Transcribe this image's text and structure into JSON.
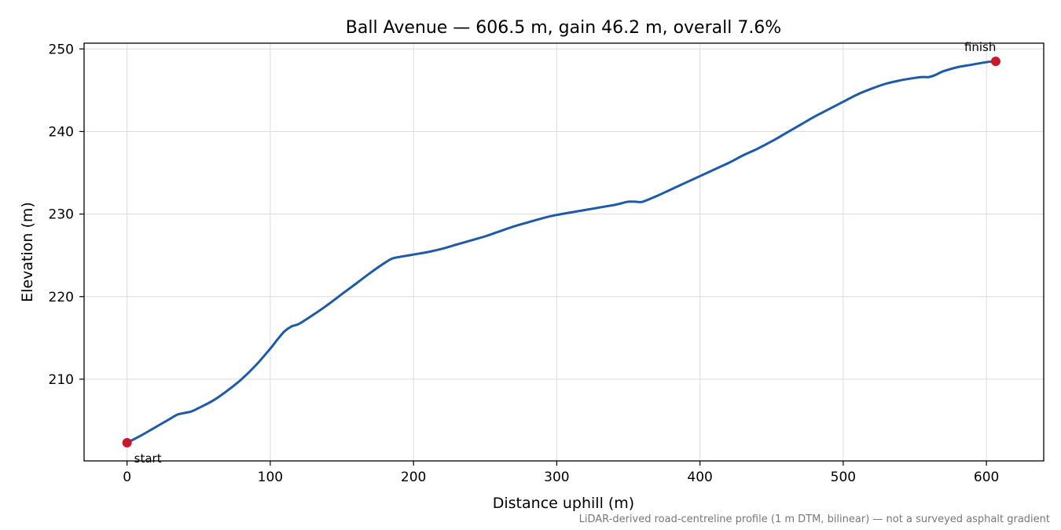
{
  "chart_data": {
    "type": "line",
    "title": "Ball Avenue — 606.5 m, gain 46.2 m, overall 7.6%",
    "xlabel": "Distance uphill (m)",
    "ylabel": "Elevation (m)",
    "xlim": [
      -30,
      640
    ],
    "ylim": [
      200.1,
      250.7
    ],
    "xticks": [
      0,
      100,
      200,
      300,
      400,
      500,
      600
    ],
    "yticks": [
      210,
      220,
      230,
      240,
      250
    ],
    "grid": true,
    "footnote": "LiDAR-derived road-centreline profile (1 m DTM, bilinear) — not a surveyed asphalt gradient",
    "series": [
      {
        "x": [
          0,
          10,
          20,
          30,
          35,
          40,
          45,
          50,
          60,
          70,
          80,
          90,
          100,
          105,
          110,
          115,
          120,
          130,
          140,
          150,
          160,
          170,
          180,
          185,
          190,
          200,
          210,
          220,
          230,
          240,
          250,
          255,
          260,
          270,
          280,
          290,
          300,
          310,
          320,
          330,
          340,
          345,
          350,
          355,
          360,
          370,
          380,
          390,
          400,
          410,
          420,
          430,
          440,
          450,
          460,
          470,
          480,
          490,
          500,
          510,
          520,
          530,
          540,
          550,
          555,
          560,
          565,
          570,
          580,
          590,
          600,
          606.5
        ],
        "y": [
          202.3,
          203.2,
          204.2,
          205.2,
          205.7,
          205.9,
          206.1,
          206.5,
          207.4,
          208.6,
          210.0,
          211.7,
          213.7,
          214.8,
          215.8,
          216.4,
          216.7,
          217.8,
          219.0,
          220.3,
          221.6,
          222.9,
          224.1,
          224.6,
          224.8,
          225.1,
          225.4,
          225.8,
          226.3,
          226.8,
          227.3,
          227.6,
          227.9,
          228.5,
          229.0,
          229.5,
          229.9,
          230.2,
          230.5,
          230.8,
          231.1,
          231.3,
          231.5,
          231.5,
          231.5,
          232.2,
          233.0,
          233.8,
          234.6,
          235.4,
          236.2,
          237.1,
          237.9,
          238.8,
          239.8,
          240.8,
          241.8,
          242.7,
          243.6,
          244.5,
          245.2,
          245.8,
          246.2,
          246.5,
          246.6,
          246.6,
          246.9,
          247.3,
          247.8,
          248.1,
          248.4,
          248.5
        ],
        "color": "#1f5aa6"
      }
    ],
    "annotations": [
      {
        "label": "start",
        "x": 0,
        "y": 202.3
      },
      {
        "label": "finish",
        "x": 606.5,
        "y": 248.5
      }
    ],
    "marker_color": "#c8192a"
  }
}
